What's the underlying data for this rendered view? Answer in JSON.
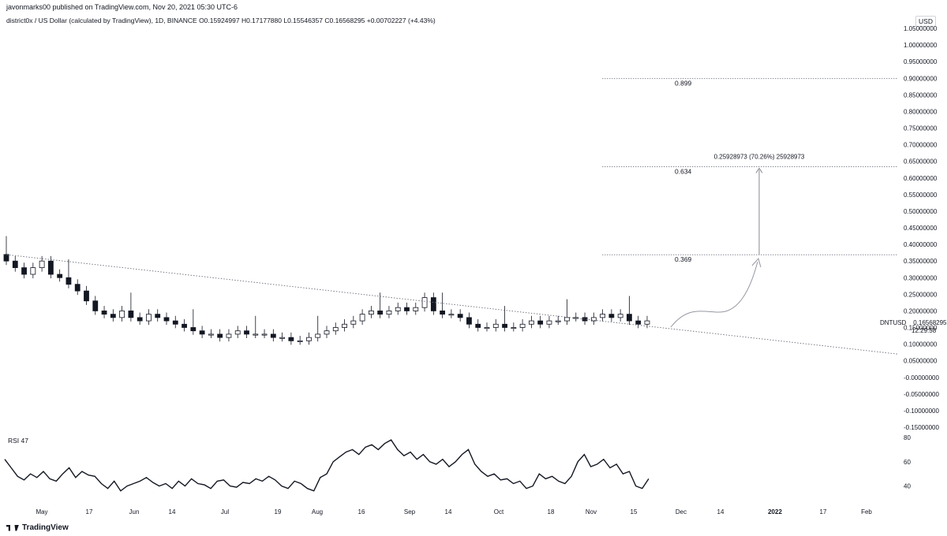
{
  "header": {
    "publisher": "javonmarks00 published on TradingView.com, Nov 20, 2021 05:30 UTC-6",
    "symbol_line": "district0x / US Dollar (calculated by TradingView), 1D, BINANCE  O0.15924997  H0.17177880  L0.15546357  C0.16568295  +0.00702227 (+4.43%)",
    "currency": "USD"
  },
  "price_tag": {
    "symbol": "DNTUSD",
    "price": "0.16568295",
    "countdown": "12:29:58"
  },
  "rsi": {
    "label": "RSI  47"
  },
  "footer": {
    "brand": "TradingView"
  },
  "annotations": {
    "fib_levels": [
      "0.899",
      "0.634",
      "0.369"
    ],
    "measure_label": "0.25928973 (70.26%) 25928973"
  },
  "colors": {
    "up": "#131722",
    "down": "#131722",
    "grid_line": "#9598a1",
    "rsi_line": "#131722"
  },
  "chart_data": [
    {
      "type": "candlestick",
      "y_tick_labels": [
        "1.05000000",
        "1.00000000",
        "0.95000000",
        "0.90000000",
        "0.85000000",
        "0.80000000",
        "0.75000000",
        "0.70000000",
        "0.65000000",
        "0.60000000",
        "0.55000000",
        "0.50000000",
        "0.45000000",
        "0.40000000",
        "0.35000000",
        "0.30000000",
        "0.25000000",
        "0.20000000",
        "0.15000000",
        "0.10000000",
        "0.05000000",
        "-0.00000000",
        "-0.05000000",
        "-0.10000000",
        "-0.15000000"
      ],
      "x_tick_labels": [
        "May",
        "17",
        "Jun",
        "14",
        "Jul",
        "19",
        "Aug",
        "16",
        "Sep",
        "14",
        "Oct",
        "18",
        "Nov",
        "15",
        "Dec",
        "14",
        "2022",
        "17",
        "Feb"
      ],
      "ylim": [
        -0.15,
        1.05
      ],
      "approx_close_series": [
        0.35,
        0.33,
        0.31,
        0.33,
        0.35,
        0.31,
        0.3,
        0.28,
        0.26,
        0.23,
        0.2,
        0.19,
        0.18,
        0.2,
        0.18,
        0.17,
        0.19,
        0.18,
        0.17,
        0.16,
        0.15,
        0.14,
        0.13,
        0.13,
        0.12,
        0.13,
        0.14,
        0.13,
        0.13,
        0.13,
        0.12,
        0.12,
        0.11,
        0.11,
        0.12,
        0.13,
        0.14,
        0.15,
        0.16,
        0.17,
        0.19,
        0.2,
        0.19,
        0.2,
        0.21,
        0.2,
        0.21,
        0.24,
        0.2,
        0.19,
        0.19,
        0.18,
        0.16,
        0.15,
        0.15,
        0.16,
        0.15,
        0.15,
        0.16,
        0.17,
        0.16,
        0.17,
        0.17,
        0.18,
        0.18,
        0.17,
        0.18,
        0.19,
        0.18,
        0.19,
        0.17,
        0.16,
        0.17
      ],
      "trendline": {
        "start": 0.37,
        "end_label_region": 0.07
      },
      "fib_levels": [
        0.899,
        0.634,
        0.369
      ],
      "measure": {
        "from": 0.369,
        "to": 0.634
      }
    },
    {
      "type": "line",
      "name": "RSI",
      "ylim": [
        30,
        80
      ],
      "y_tick_labels": [
        "80",
        "60",
        "40"
      ],
      "values": [
        62,
        55,
        48,
        45,
        50,
        47,
        52,
        46,
        44,
        50,
        55,
        47,
        52,
        49,
        48,
        42,
        38,
        44,
        36,
        40,
        42,
        44,
        47,
        43,
        40,
        42,
        38,
        44,
        40,
        46,
        42,
        41,
        38,
        44,
        45,
        40,
        39,
        43,
        42,
        46,
        44,
        48,
        45,
        40,
        38,
        44,
        42,
        38,
        36,
        47,
        50,
        60,
        64,
        68,
        70,
        66,
        72,
        74,
        70,
        75,
        78,
        70,
        65,
        68,
        62,
        66,
        60,
        58,
        62,
        56,
        60,
        66,
        70,
        58,
        52,
        48,
        50,
        45,
        46,
        42,
        44,
        38,
        40,
        50,
        46,
        48,
        44,
        42,
        48,
        60,
        66,
        56,
        58,
        62,
        55,
        58,
        50,
        52,
        40,
        38,
        46
      ]
    }
  ]
}
